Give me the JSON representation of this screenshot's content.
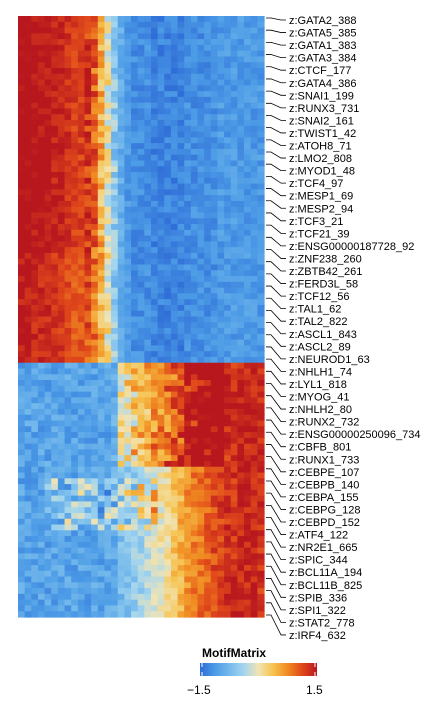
{
  "chart_data": {
    "type": "heatmap",
    "title": "",
    "colorbar": {
      "title": "MotifMatrix",
      "min": -1.5,
      "max": 1.5,
      "min_label": "−1.5",
      "max_label": "1.5",
      "colors": [
        "#2e6bd6",
        "#4b9ae6",
        "#74b9ec",
        "#a4d5ee",
        "#f1e4b4",
        "#f6c24e",
        "#f08a22",
        "#e0481b",
        "#b8171e"
      ]
    },
    "rows_top_cluster": 60,
    "rows_bottom_cluster": 44,
    "columns": 37,
    "row_labels": [
      "z:GATA2_388",
      "z:GATA5_385",
      "z:GATA1_383",
      "z:GATA3_384",
      "z:CTCF_177",
      "z:GATA4_386",
      "z:SNAI1_199",
      "z:RUNX3_731",
      "z:SNAI2_161",
      "z:TWIST1_42",
      "z:ATOH8_71",
      "z:LMO2_808",
      "z:MYOD1_48",
      "z:TCF4_97",
      "z:MESP1_69",
      "z:MESP2_94",
      "z:TCF3_21",
      "z:TCF21_39",
      "z:ENSG00000187728_92",
      "z:ZNF238_260",
      "z:ZBTB42_261",
      "z:FERD3L_58",
      "z:TCF12_56",
      "z:TAL1_62",
      "z:TAL2_822",
      "z:ASCL1_843",
      "z:ASCL2_89",
      "z:NEUROD1_63",
      "z:NHLH1_74",
      "z:LYL1_818",
      "z:MYOG_41",
      "z:NHLH2_80",
      "z:RUNX2_732",
      "z:ENSG00000250096_734",
      "z:CBFB_801",
      "z:RUNX1_733",
      "z:CEBPE_107",
      "z:CEBPB_140",
      "z:CEBPA_155",
      "z:CEBPG_128",
      "z:CEBPD_152",
      "z:ATF4_122",
      "z:NR2E1_665",
      "z:SPIC_344",
      "z:BCL11A_194",
      "z:BCL11B_825",
      "z:SPIB_336",
      "z:SPI1_322",
      "z:STAT2_778",
      "z:IRF4_632"
    ]
  }
}
